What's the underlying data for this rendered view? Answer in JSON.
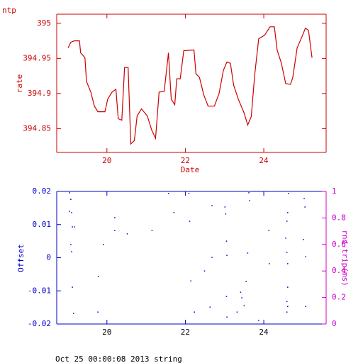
{
  "chart_data": [
    {
      "type": "line",
      "title": "ntp",
      "xlabel": "Date",
      "ylabel": "rate",
      "color": "#cc0000",
      "axis_color": "#cc0000",
      "xtick_color": "#cc0000",
      "xlim": [
        18.72,
        25.59
      ],
      "xticks": [
        20,
        22,
        24
      ],
      "ylim": [
        394.816,
        395.013
      ],
      "yticks": [
        394.85,
        394.9,
        394.95,
        395
      ],
      "x": [
        19.01,
        19.08,
        19.17,
        19.3,
        19.33,
        19.44,
        19.48,
        19.59,
        19.68,
        19.77,
        19.95,
        20.02,
        20.13,
        20.23,
        20.29,
        20.38,
        20.45,
        20.54,
        20.61,
        20.7,
        20.77,
        20.88,
        21.03,
        21.14,
        21.24,
        21.33,
        21.46,
        21.57,
        21.64,
        21.73,
        21.78,
        21.87,
        21.96,
        22.22,
        22.27,
        22.36,
        22.47,
        22.58,
        22.74,
        22.86,
        22.97,
        23.06,
        23.15,
        23.23,
        23.35,
        23.5,
        23.59,
        23.68,
        23.77,
        23.87,
        24.02,
        24.16,
        24.27,
        24.34,
        24.45,
        24.56,
        24.68,
        24.74,
        24.85,
        24.99,
        25.06,
        25.14,
        25.23
      ],
      "values": [
        394.965,
        394.973,
        394.975,
        394.975,
        394.958,
        394.951,
        394.917,
        394.902,
        394.882,
        394.874,
        394.874,
        394.892,
        394.902,
        394.906,
        394.864,
        394.862,
        394.937,
        394.937,
        394.828,
        394.833,
        394.868,
        394.878,
        394.868,
        394.848,
        394.836,
        394.902,
        394.903,
        394.958,
        394.892,
        394.884,
        394.921,
        394.921,
        394.961,
        394.962,
        394.928,
        394.923,
        394.898,
        394.882,
        394.882,
        394.9,
        394.933,
        394.945,
        394.943,
        394.912,
        394.892,
        394.872,
        394.855,
        394.867,
        394.927,
        394.978,
        394.983,
        394.995,
        394.995,
        394.962,
        394.943,
        394.914,
        394.913,
        394.923,
        394.965,
        394.983,
        394.993,
        394.99,
        394.951
      ]
    },
    {
      "type": "scatter",
      "ylabel": "Offset",
      "y2label": "rnd-trip(ms)",
      "color": "#0000cc",
      "axis_color": "#0000cc",
      "y2_color": "#cc00cc",
      "xtick_color": "#000000",
      "xlim": [
        18.72,
        25.59
      ],
      "xticks": [
        20,
        22,
        24
      ],
      "ylim": [
        -0.02,
        0.02
      ],
      "yticks": [
        -0.02,
        -0.01,
        0,
        0.01,
        0.02
      ],
      "y2lim": [
        0,
        1
      ],
      "y2ticks": [
        0,
        0.2,
        0.4,
        0.6,
        0.8,
        1
      ],
      "x": [
        19.05,
        19.08,
        19.05,
        19.1,
        19.12,
        19.17,
        19.08,
        19.1,
        19.12,
        19.15,
        19.77,
        19.78,
        19.91,
        20.2,
        20.2,
        20.52,
        21.15,
        21.57,
        21.71,
        22.09,
        22.11,
        22.14,
        22.23,
        22.49,
        22.63,
        22.68,
        22.68,
        23.01,
        23.03,
        23.05,
        23.06,
        23.05,
        23.06,
        23.32,
        23.41,
        23.44,
        23.5,
        23.55,
        23.59,
        23.62,
        23.64,
        23.87,
        24.13,
        24.14,
        24.63,
        24.61,
        24.59,
        24.56,
        24.59,
        24.61,
        24.61,
        24.59,
        24.61,
        24.59,
        25.03,
        25.05,
        25.01,
        25.07,
        25.07
      ],
      "values": [
        0.0196,
        0.0176,
        0.014,
        0.0136,
        0.0093,
        0.0093,
        0.004,
        0.0018,
        -0.0089,
        -0.0168,
        -0.0164,
        -0.0057,
        0.004,
        0.0121,
        0.0082,
        0.0072,
        0.0082,
        0.0194,
        0.0136,
        0.0194,
        0.011,
        -0.007,
        -0.0164,
        -0.004,
        -0.0149,
        0.0001,
        0.0157,
        0.0153,
        0.0132,
        0.005,
        0.0007,
        -0.0117,
        -0.0179,
        -0.0164,
        -0.0104,
        -0.0121,
        -0.0145,
        -0.0072,
        0.0014,
        0.0196,
        0.0172,
        -0.0189,
        0.0082,
        -0.0018,
        0.0194,
        0.0136,
        0.011,
        0.0059,
        0.0016,
        -0.0018,
        -0.0089,
        -0.0132,
        -0.0147,
        -0.0164,
        0.0179,
        0.0153,
        0.0055,
        0.0003,
        -0.0147
      ]
    }
  ],
  "footer": "Oct 25 00:00:08 2013 string"
}
